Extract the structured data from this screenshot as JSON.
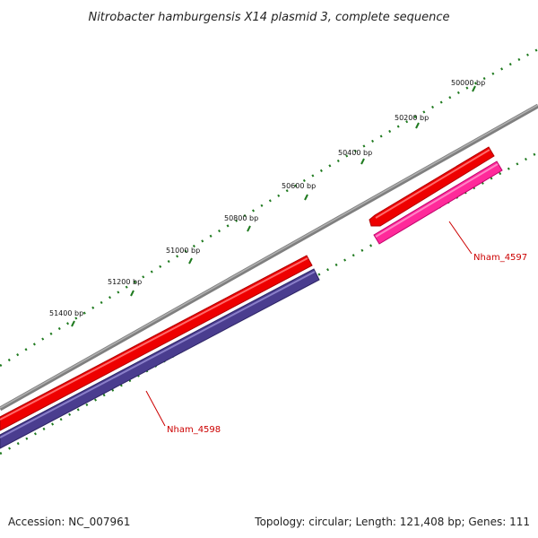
{
  "title": "Nitrobacter hamburgensis X14 plasmid 3, complete sequence",
  "footer": {
    "accession": "Accession: NC_007961",
    "summary": "Topology: circular; Length: 121,408 bp; Genes: 111"
  },
  "ticks": [
    {
      "label": "50000 bp"
    },
    {
      "label": "50200 bp"
    },
    {
      "label": "50400 bp"
    },
    {
      "label": "50600 bp"
    },
    {
      "label": "50800 bp"
    },
    {
      "label": "51000 bp"
    },
    {
      "label": "51200 bp"
    },
    {
      "label": "51400 bp"
    }
  ],
  "genes": [
    {
      "name": "Nham_4597",
      "label_color": "#cc0000",
      "outer_color": "#ee0000",
      "inner_color": "#ff2a9a"
    },
    {
      "name": "Nham_4598",
      "label_color": "#cc0000",
      "outer_color": "#ee0000",
      "inner_color": "#4a3d8f"
    }
  ],
  "colors": {
    "backbone": "#7f7f7f",
    "tick_marks": "#1f7a1f"
  }
}
